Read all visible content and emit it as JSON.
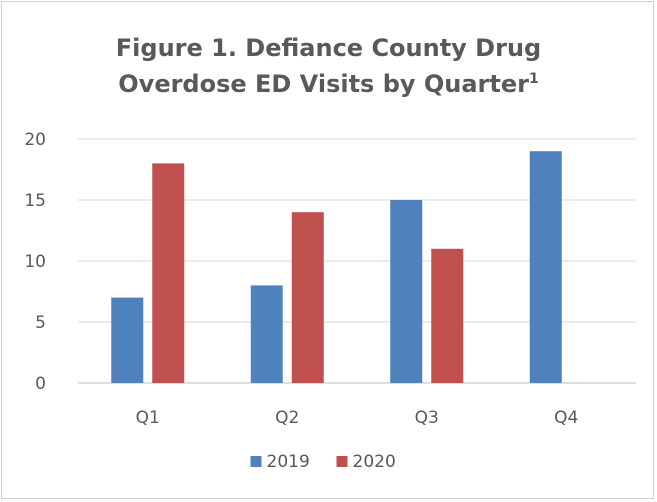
{
  "chart_data": {
    "type": "bar",
    "title": "Figure 1. Defiance County Drug Overdose ED Visits by Quarter",
    "title_superscript": "1",
    "xlabel": "",
    "ylabel": "",
    "categories": [
      "Q1",
      "Q2",
      "Q3",
      "Q4"
    ],
    "series": [
      {
        "name": "2019",
        "color": "#4f81bd",
        "values": [
          7,
          8,
          15,
          19
        ]
      },
      {
        "name": "2020",
        "color": "#c0504d",
        "values": [
          18,
          14,
          11,
          null
        ]
      }
    ],
    "ylim": [
      0,
      20
    ],
    "yticks": [
      0,
      5,
      10,
      15,
      20
    ],
    "grid": true,
    "legend_position": "bottom"
  }
}
